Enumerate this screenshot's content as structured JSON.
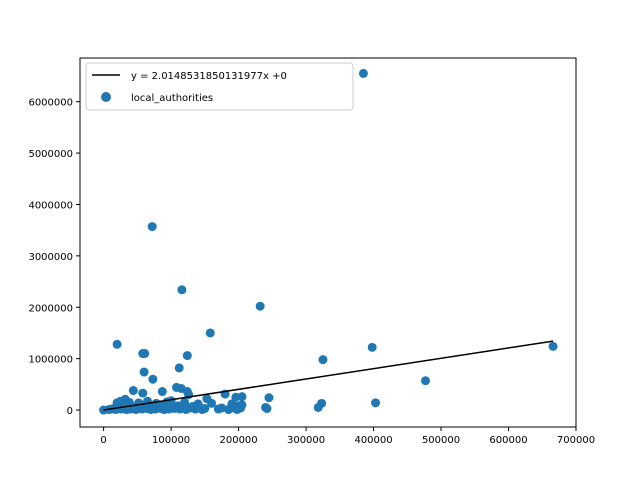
{
  "chart_data": {
    "type": "scatter",
    "title": "",
    "xlabel": "",
    "ylabel": "",
    "xlim": [
      -35000,
      700000
    ],
    "ylim": [
      -330000,
      6850000
    ],
    "x_ticks": [
      0,
      100000,
      200000,
      300000,
      400000,
      500000,
      600000,
      700000
    ],
    "x_tick_labels": [
      "0",
      "100000",
      "200000",
      "300000",
      "400000",
      "500000",
      "600000",
      "700000"
    ],
    "y_ticks": [
      0,
      1000000,
      2000000,
      3000000,
      4000000,
      5000000,
      6000000
    ],
    "y_tick_labels": [
      "0",
      "1000000",
      "2000000",
      "3000000",
      "4000000",
      "5000000",
      "6000000"
    ],
    "grid": false,
    "legend_position": "top-left",
    "fit_line": {
      "label": "y = 2.0148531850131977x +0",
      "slope": 2.0148531850131977,
      "intercept": 0,
      "x_range": [
        0,
        666000
      ],
      "color": "#000000"
    },
    "series": [
      {
        "name": "local_authorities",
        "color": "#1f77b4",
        "points": [
          [
            385000,
            6550000
          ],
          [
            72000,
            3570000
          ],
          [
            116000,
            2340000
          ],
          [
            232000,
            2020000
          ],
          [
            158000,
            1500000
          ],
          [
            20000,
            1280000
          ],
          [
            58000,
            1100000
          ],
          [
            61000,
            1100000
          ],
          [
            124000,
            1060000
          ],
          [
            325000,
            980000
          ],
          [
            398000,
            1220000
          ],
          [
            666000,
            1240000
          ],
          [
            112000,
            820000
          ],
          [
            60000,
            740000
          ],
          [
            73000,
            600000
          ],
          [
            477000,
            570000
          ],
          [
            44000,
            380000
          ],
          [
            87000,
            360000
          ],
          [
            108000,
            440000
          ],
          [
            115000,
            420000
          ],
          [
            124000,
            360000
          ],
          [
            126000,
            300000
          ],
          [
            58000,
            330000
          ],
          [
            180000,
            310000
          ],
          [
            205000,
            260000
          ],
          [
            196000,
            250000
          ],
          [
            245000,
            240000
          ],
          [
            153000,
            220000
          ],
          [
            32000,
            210000
          ],
          [
            25000,
            170000
          ],
          [
            20000,
            140000
          ],
          [
            38000,
            150000
          ],
          [
            52000,
            140000
          ],
          [
            65000,
            170000
          ],
          [
            78000,
            130000
          ],
          [
            94000,
            160000
          ],
          [
            100000,
            180000
          ],
          [
            120000,
            150000
          ],
          [
            140000,
            120000
          ],
          [
            160000,
            130000
          ],
          [
            190000,
            120000
          ],
          [
            200000,
            80000
          ],
          [
            205000,
            100000
          ],
          [
            323000,
            130000
          ],
          [
            318000,
            50000
          ],
          [
            403000,
            140000
          ],
          [
            240000,
            50000
          ],
          [
            242000,
            30000
          ],
          [
            0,
            0
          ],
          [
            8000,
            10000
          ],
          [
            12000,
            20000
          ],
          [
            15000,
            30000
          ],
          [
            18000,
            10000
          ],
          [
            22000,
            40000
          ],
          [
            26000,
            20000
          ],
          [
            28000,
            60000
          ],
          [
            30000,
            30000
          ],
          [
            34000,
            10000
          ],
          [
            36000,
            50000
          ],
          [
            40000,
            20000
          ],
          [
            42000,
            70000
          ],
          [
            45000,
            40000
          ],
          [
            48000,
            10000
          ],
          [
            50000,
            80000
          ],
          [
            53000,
            30000
          ],
          [
            55000,
            60000
          ],
          [
            57000,
            20000
          ],
          [
            60000,
            50000
          ],
          [
            62000,
            90000
          ],
          [
            64000,
            30000
          ],
          [
            67000,
            70000
          ],
          [
            70000,
            10000
          ],
          [
            72000,
            40000
          ],
          [
            75000,
            80000
          ],
          [
            77000,
            20000
          ],
          [
            80000,
            60000
          ],
          [
            82000,
            100000
          ],
          [
            85000,
            30000
          ],
          [
            88000,
            70000
          ],
          [
            90000,
            10000
          ],
          [
            92000,
            50000
          ],
          [
            95000,
            90000
          ],
          [
            97000,
            20000
          ],
          [
            102000,
            60000
          ],
          [
            105000,
            30000
          ],
          [
            110000,
            80000
          ],
          [
            113000,
            20000
          ],
          [
            118000,
            50000
          ],
          [
            122000,
            10000
          ],
          [
            128000,
            40000
          ],
          [
            132000,
            70000
          ],
          [
            136000,
            20000
          ],
          [
            142000,
            50000
          ],
          [
            146000,
            10000
          ],
          [
            150000,
            30000
          ],
          [
            170000,
            20000
          ],
          [
            175000,
            40000
          ],
          [
            185000,
            10000
          ],
          [
            195000,
            30000
          ],
          [
            198000,
            10000
          ],
          [
            203000,
            40000
          ]
        ]
      }
    ]
  }
}
